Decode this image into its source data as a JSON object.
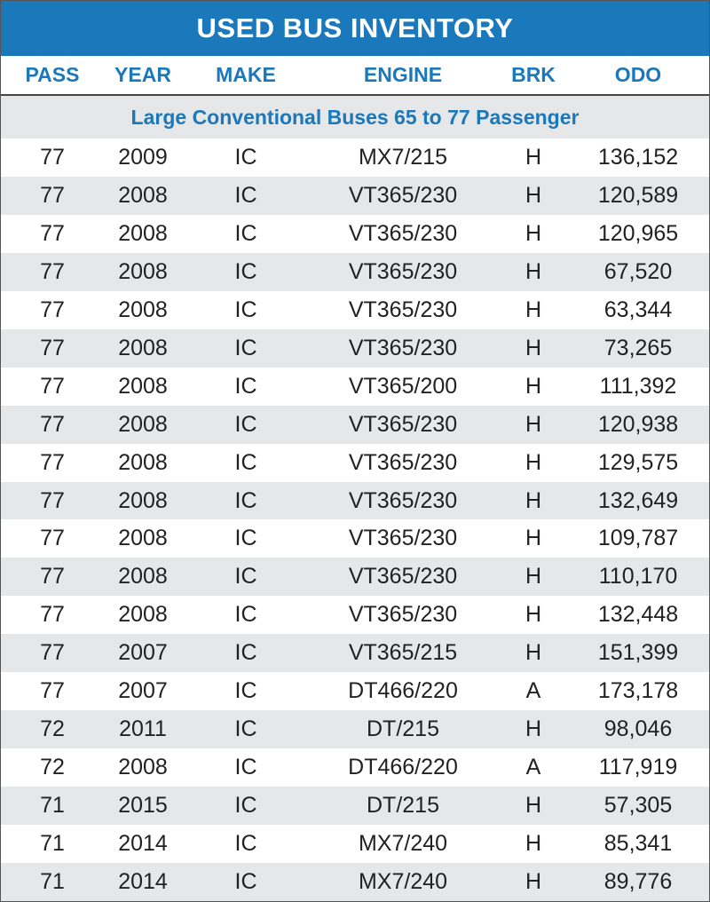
{
  "table": {
    "title": "USED BUS INVENTORY",
    "headers": [
      "PASS",
      "YEAR",
      "MAKE",
      "ENGINE",
      "BRK",
      "ODO"
    ],
    "section": "Large Conventional Buses 65 to 77 Passenger",
    "rows": [
      [
        "77",
        "2009",
        "IC",
        "MX7/215",
        "H",
        "136,152"
      ],
      [
        "77",
        "2008",
        "IC",
        "VT365/230",
        "H",
        "120,589"
      ],
      [
        "77",
        "2008",
        "IC",
        "VT365/230",
        "H",
        "120,965"
      ],
      [
        "77",
        "2008",
        "IC",
        "VT365/230",
        "H",
        "67,520"
      ],
      [
        "77",
        "2008",
        "IC",
        "VT365/230",
        "H",
        "63,344"
      ],
      [
        "77",
        "2008",
        "IC",
        "VT365/230",
        "H",
        "73,265"
      ],
      [
        "77",
        "2008",
        "IC",
        "VT365/200",
        "H",
        "111,392"
      ],
      [
        "77",
        "2008",
        "IC",
        "VT365/230",
        "H",
        "120,938"
      ],
      [
        "77",
        "2008",
        "IC",
        "VT365/230",
        "H",
        "129,575"
      ],
      [
        "77",
        "2008",
        "IC",
        "VT365/230",
        "H",
        "132,649"
      ],
      [
        "77",
        "2008",
        "IC",
        "VT365/230",
        "H",
        "109,787"
      ],
      [
        "77",
        "2008",
        "IC",
        "VT365/230",
        "H",
        "110,170"
      ],
      [
        "77",
        "2008",
        "IC",
        "VT365/230",
        "H",
        "132,448"
      ],
      [
        "77",
        "2007",
        "IC",
        "VT365/215",
        "H",
        "151,399"
      ],
      [
        "77",
        "2007",
        "IC",
        "DT466/220",
        "A",
        "173,178"
      ],
      [
        "72",
        "2011",
        "IC",
        "DT/215",
        "H",
        "98,046"
      ],
      [
        "72",
        "2008",
        "IC",
        "DT466/220",
        "A",
        "117,919"
      ],
      [
        "71",
        "2015",
        "IC",
        "DT/215",
        "H",
        "57,305"
      ],
      [
        "71",
        "2014",
        "IC",
        "MX7/240",
        "H",
        "85,341"
      ],
      [
        "71",
        "2014",
        "IC",
        "MX7/240",
        "H",
        "89,776"
      ]
    ]
  }
}
